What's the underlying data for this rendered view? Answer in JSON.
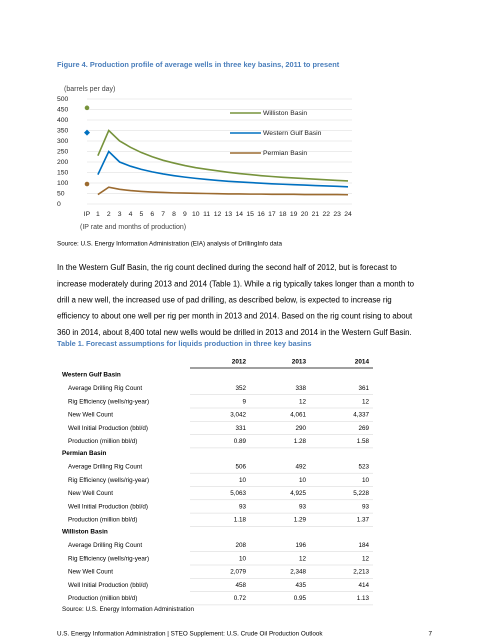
{
  "figure_title": "Figure 4. Production profile of average wells in three key basins, 2011 to present",
  "chart_data": {
    "type": "line",
    "y_label": "(barrels per day)",
    "x_label": "(IP rate and months of production)",
    "categories": [
      "IP",
      "1",
      "2",
      "3",
      "4",
      "5",
      "6",
      "7",
      "8",
      "9",
      "10",
      "11",
      "12",
      "13",
      "14",
      "15",
      "16",
      "17",
      "18",
      "19",
      "20",
      "21",
      "22",
      "23",
      "24"
    ],
    "ylim": [
      0,
      500
    ],
    "yticks": [
      0,
      50,
      100,
      150,
      200,
      250,
      300,
      350,
      400,
      450,
      500
    ],
    "grid": true,
    "series": [
      {
        "name": "Williston Basin",
        "color": "#77933c",
        "marker": "circle",
        "ip_value": 458,
        "values": [
          null,
          230,
          350,
          300,
          270,
          245,
          225,
          208,
          195,
          183,
          173,
          165,
          158,
          151,
          145,
          140,
          135,
          131,
          127,
          124,
          121,
          118,
          115,
          112,
          110
        ]
      },
      {
        "name": "Western Gulf Basin",
        "color": "#0070c0",
        "marker": "diamond",
        "ip_value": 340,
        "values": [
          null,
          140,
          250,
          200,
          180,
          165,
          153,
          143,
          135,
          128,
          122,
          117,
          112,
          108,
          105,
          102,
          99,
          96,
          94,
          92,
          90,
          88,
          86,
          84,
          82
        ]
      },
      {
        "name": "Permian Basin",
        "color": "#9c6b30",
        "marker": "circle",
        "ip_value": 95,
        "values": [
          null,
          45,
          80,
          70,
          64,
          60,
          57,
          55,
          53,
          52,
          51,
          50,
          49,
          48,
          48,
          47,
          47,
          46,
          46,
          46,
          45,
          45,
          45,
          45,
          44
        ]
      }
    ]
  },
  "figure_source": "Source:  U.S. Energy Information Administration (EIA) analysis of DrillingInfo data",
  "paragraph": [
    "In the Western Gulf Basin, the rig count declined during the second half of 2012, but is forecast to",
    "increase moderately during 2013 and 2014 (Table 1).  While a rig typically takes longer than a month to",
    "drill a new well, the increased use of pad drilling, as described below, is expected to increase rig",
    "efficiency to about one well per rig per month in 2013 and 2014.  Based on the rig count rising to about",
    "360 in 2014, about 8,400 total new wells would be drilled in 2013 and 2014 in the Western Gulf Basin."
  ],
  "table": {
    "title": "Table 1. Forecast assumptions for liquids production in three key basins",
    "columns": [
      "2012",
      "2013",
      "2014"
    ],
    "sections": [
      {
        "name": "Western Gulf Basin",
        "rows": [
          [
            "Average Drilling Rig Count",
            "352",
            "338",
            "361"
          ],
          [
            "Rig Efficiency (wells/rig-year)",
            "9",
            "12",
            "12"
          ],
          [
            "New Well Count",
            "3,042",
            "4,061",
            "4,337"
          ],
          [
            "Well Initial Production (bbl/d)",
            "331",
            "290",
            "269"
          ],
          [
            "Production (million bbl/d)",
            "0.89",
            "1.28",
            "1.58"
          ]
        ]
      },
      {
        "name": "Permian Basin",
        "rows": [
          [
            "Average Drilling Rig Count",
            "506",
            "492",
            "523"
          ],
          [
            "Rig Efficiency (wells/rig-year)",
            "10",
            "10",
            "10"
          ],
          [
            "New Well Count",
            "5,063",
            "4,925",
            "5,228"
          ],
          [
            "Well Initial Production (bbl/d)",
            "93",
            "93",
            "93"
          ],
          [
            "Production (million bbl/d)",
            "1.18",
            "1.29",
            "1.37"
          ]
        ]
      },
      {
        "name": "Williston Basin",
        "rows": [
          [
            "Average Drilling Rig Count",
            "208",
            "196",
            "184"
          ],
          [
            "Rig Efficiency (wells/rig-year)",
            "10",
            "12",
            "12"
          ],
          [
            "New Well Count",
            "2,079",
            "2,348",
            "2,213"
          ],
          [
            "Well Initial Production (bbl/d)",
            "458",
            "435",
            "414"
          ],
          [
            "Production (million bbl/d)",
            "0.72",
            "0.95",
            "1.13"
          ]
        ]
      }
    ],
    "source": "Source: U.S. Energy Information Administration"
  },
  "footer": {
    "text": "U.S. Energy Information Administration   |   STEO Supplement: U.S. Crude Oil Production Outlook",
    "page": "7"
  }
}
